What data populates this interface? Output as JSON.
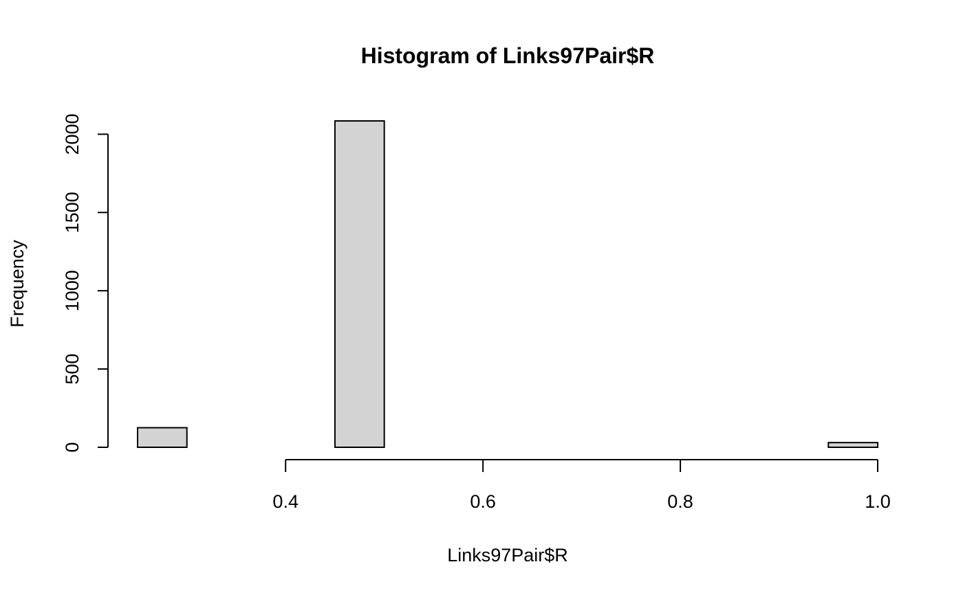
{
  "chart_data": {
    "type": "bar",
    "title": "Histogram of Links97Pair$R",
    "xlabel": "Links97Pair$R",
    "ylabel": "Frequency",
    "bins": [
      {
        "start": 0.25,
        "end": 0.3,
        "count": 125
      },
      {
        "start": 0.3,
        "end": 0.35,
        "count": 0
      },
      {
        "start": 0.35,
        "end": 0.4,
        "count": 0
      },
      {
        "start": 0.4,
        "end": 0.45,
        "count": 0
      },
      {
        "start": 0.45,
        "end": 0.5,
        "count": 2085
      },
      {
        "start": 0.5,
        "end": 0.55,
        "count": 0
      },
      {
        "start": 0.55,
        "end": 0.6,
        "count": 0
      },
      {
        "start": 0.6,
        "end": 0.65,
        "count": 0
      },
      {
        "start": 0.65,
        "end": 0.7,
        "count": 0
      },
      {
        "start": 0.7,
        "end": 0.75,
        "count": 0
      },
      {
        "start": 0.75,
        "end": 0.8,
        "count": 0
      },
      {
        "start": 0.8,
        "end": 0.85,
        "count": 0
      },
      {
        "start": 0.85,
        "end": 0.9,
        "count": 0
      },
      {
        "start": 0.9,
        "end": 0.95,
        "count": 0
      },
      {
        "start": 0.95,
        "end": 1.0,
        "count": 30
      }
    ],
    "xlim": [
      0.25,
      1.0
    ],
    "ylim": [
      0,
      2085
    ],
    "x_ticks": [
      0.4,
      0.6,
      0.8,
      1.0
    ],
    "x_tick_labels": [
      "0.4",
      "0.6",
      "0.8",
      "1.0"
    ],
    "y_ticks": [
      0,
      500,
      1000,
      1500,
      2000
    ],
    "y_tick_labels": [
      "0",
      "500",
      "1000",
      "1500",
      "2000"
    ],
    "bar_fill": "#d3d3d3",
    "bar_stroke": "#000000",
    "grid": false
  }
}
